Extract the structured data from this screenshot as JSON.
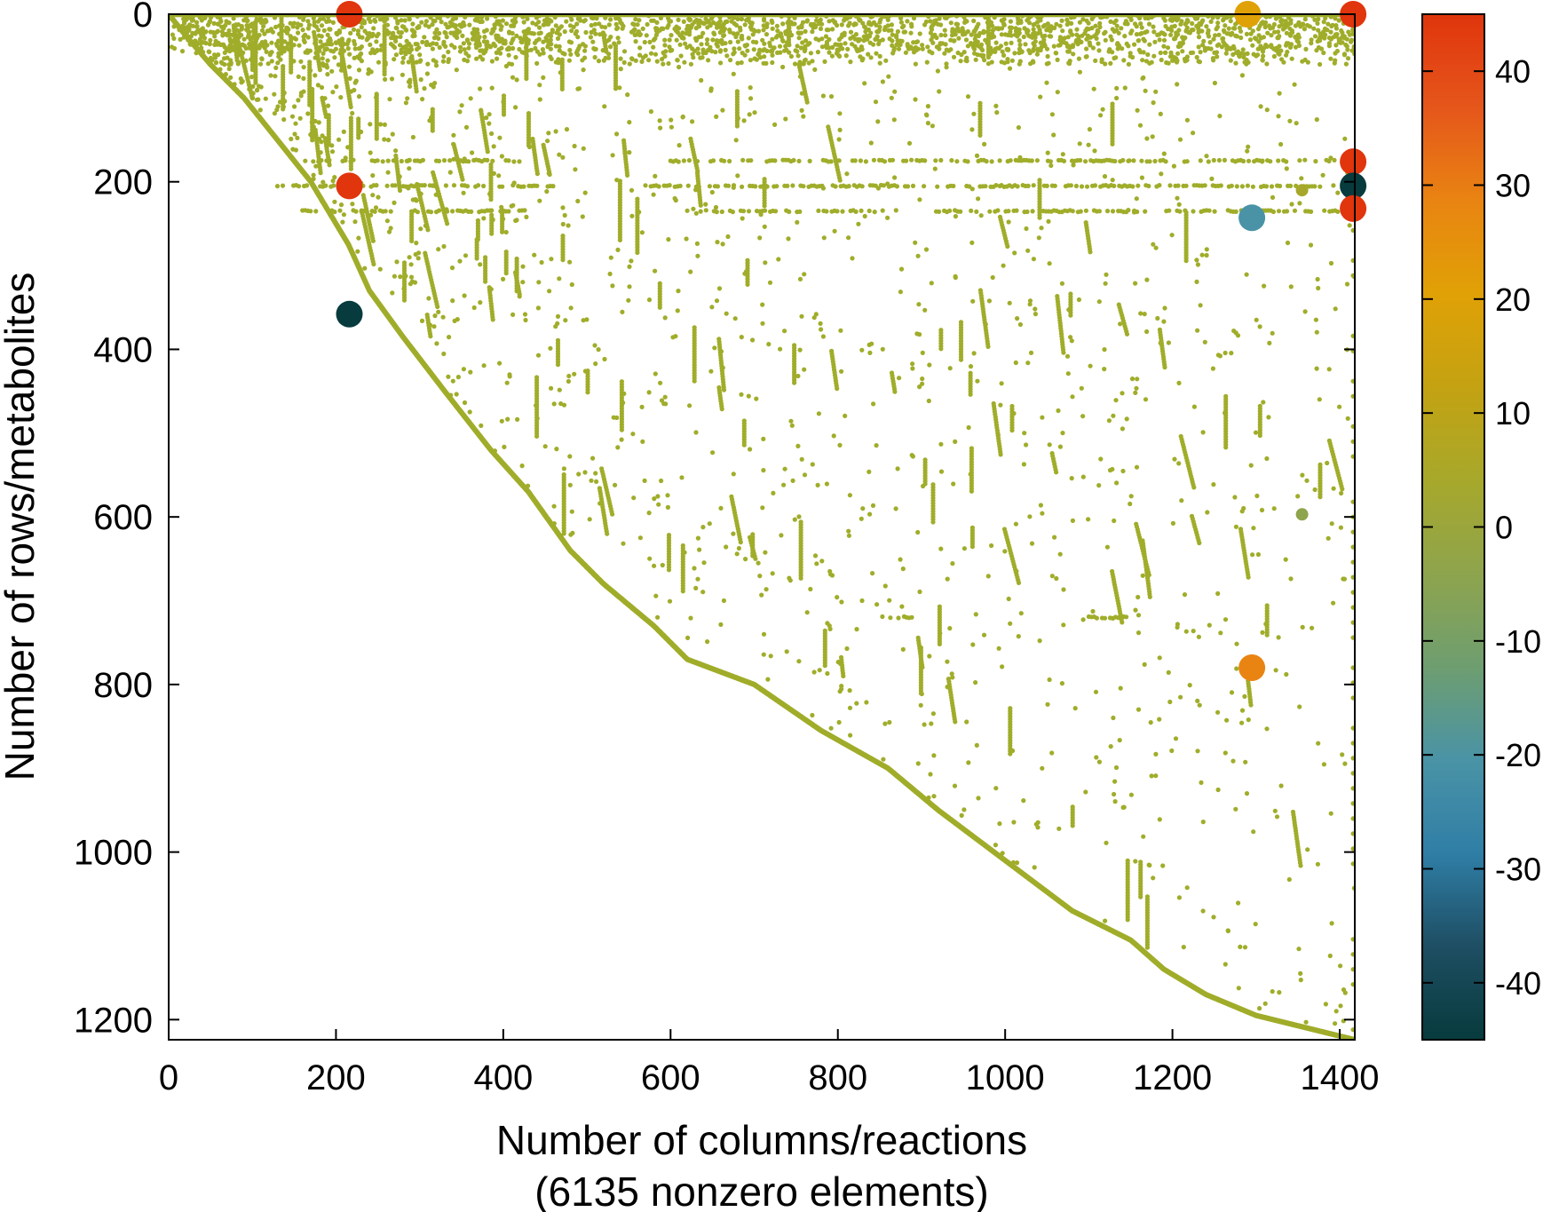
{
  "chart_data": {
    "type": "scatter",
    "title": "",
    "xlabel": "Number of columns/reactions",
    "xlabel_note": "(6135 nonzero elements)",
    "ylabel": "Number of rows/metabolites",
    "xlim": [
      0,
      1418
    ],
    "ylim": [
      0,
      1224
    ],
    "y_inverted": true,
    "grid": false,
    "x_ticks": [
      0,
      200,
      400,
      600,
      800,
      1000,
      1200,
      1400
    ],
    "y_ticks": [
      0,
      200,
      400,
      600,
      800,
      1000,
      1200
    ],
    "nonzero_count": 6135,
    "default_value": 1,
    "default_color": "#a0ad2a",
    "colorbar": {
      "range": [
        -45,
        45
      ],
      "ticks": [
        40,
        30,
        20,
        10,
        0,
        -10,
        -20,
        -30,
        -40
      ],
      "colors": [
        "#073b3d",
        "#1e4e63",
        "#2f7ea6",
        "#4a93a6",
        "#6e9e70",
        "#8ea44d",
        "#a7a82b",
        "#c4a212",
        "#e0a106",
        "#e98412",
        "#e5561b",
        "#e0350d"
      ]
    },
    "diagonal_points": [
      [
        0,
        0
      ],
      [
        20,
        25
      ],
      [
        50,
        60
      ],
      [
        90,
        100
      ],
      [
        130,
        150
      ],
      [
        170,
        200
      ],
      [
        215,
        275
      ],
      [
        240,
        330
      ],
      [
        280,
        385
      ],
      [
        330,
        450
      ],
      [
        385,
        520
      ],
      [
        430,
        570
      ],
      [
        480,
        640
      ],
      [
        520,
        680
      ],
      [
        580,
        730
      ],
      [
        620,
        770
      ],
      [
        700,
        800
      ],
      [
        780,
        855
      ],
      [
        860,
        900
      ],
      [
        920,
        950
      ],
      [
        1000,
        1010
      ],
      [
        1080,
        1070
      ],
      [
        1150,
        1105
      ],
      [
        1190,
        1140
      ],
      [
        1240,
        1170
      ],
      [
        1300,
        1195
      ],
      [
        1418,
        1224
      ]
    ],
    "highlighted_points": [
      {
        "x": 216,
        "y": 0,
        "value": 44
      },
      {
        "x": 216,
        "y": 205,
        "value": 42
      },
      {
        "x": 216,
        "y": 358,
        "value": -42
      },
      {
        "x": 1290,
        "y": 0,
        "value": 24
      },
      {
        "x": 1295,
        "y": 243,
        "value": -20
      },
      {
        "x": 1295,
        "y": 780,
        "value": 26
      },
      {
        "x": 1355,
        "y": 210,
        "value": 5
      },
      {
        "x": 1355,
        "y": 597,
        "value": -8
      },
      {
        "x": 1416,
        "y": 0,
        "value": 42
      },
      {
        "x": 1416,
        "y": 176,
        "value": 42
      },
      {
        "x": 1416,
        "y": 205,
        "value": -42
      },
      {
        "x": 1416,
        "y": 232,
        "value": 42
      }
    ],
    "horizontal_bands": [
      {
        "y": 0,
        "x0": 0,
        "x1": 1418
      },
      {
        "y": 175,
        "x0": 160,
        "x1": 420
      },
      {
        "y": 205,
        "x0": 130,
        "x1": 460
      },
      {
        "y": 235,
        "x0": 160,
        "x1": 430
      },
      {
        "y": 175,
        "x0": 600,
        "x1": 1400
      },
      {
        "y": 205,
        "x0": 570,
        "x1": 1400
      },
      {
        "y": 235,
        "x0": 620,
        "x1": 1400
      },
      {
        "y": 720,
        "x0": 850,
        "x1": 895
      },
      {
        "y": 720,
        "x0": 1100,
        "x1": 1145
      },
      {
        "y": 25,
        "x0": 70,
        "x1": 110
      },
      {
        "y": 40,
        "x0": 70,
        "x1": 110
      }
    ]
  }
}
